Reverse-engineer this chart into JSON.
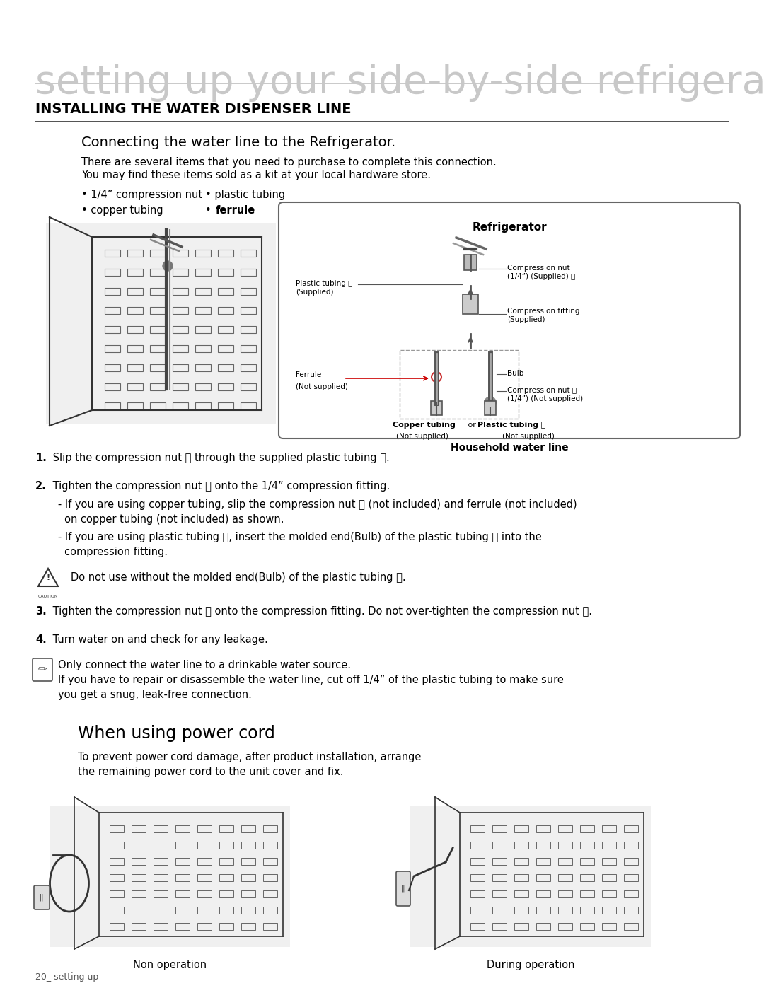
{
  "page_title": "setting up your side-by-side refrigerator",
  "section_title": "INSTALLING THE WATER DISPENSER LINE",
  "subsection_title": "Connecting the water line to the Refrigerator.",
  "intro_line1": "There are several items that you need to purchase to complete this connection.",
  "intro_line2": "You may find these items sold as a kit at your local hardware store.",
  "bullet_col1_1": "• 1/4” compression nut",
  "bullet_col1_2": "• copper tubing",
  "bullet_col2_1": "• plastic tubing",
  "bullet_col2_2_prefix": "• ",
  "bullet_col2_2_bold": "ferrule",
  "diagram_title": "Refrigerator",
  "diagram_label_plastic": "Plastic tubing Ⓐ\n(Supplied)",
  "diagram_label_comp_nut_a": "Compression nut\n(1/4”) (Supplied) Ⓐ",
  "diagram_label_comp_fitting": "Compression fitting\n(Supplied)",
  "diagram_label_ferrule": "Ferrule",
  "diagram_label_ferrule_ns": "(Not supplied)",
  "diagram_label_bulb": "Bulb",
  "diagram_label_comp_nut_b": "Compression nut Ⓑ\n(1/4”) (Not supplied)",
  "diagram_copper_bold": "Copper tubing",
  "diagram_or": " or ",
  "diagram_plastic_bold": "Plastic tubing Ⓑ",
  "diagram_not_sup1": "(Not supplied)",
  "diagram_not_sup2": "(Not supplied)",
  "diagram_footer": "Household water line",
  "step1_bold": "1.",
  "step1_text": " Slip the compression nut Ⓐ through the supplied plastic tubing Ⓐ.",
  "step2_bold": "2.",
  "step2_text": " Tighten the compression nut Ⓐ onto the 1/4” compression fitting.",
  "step2_sub1": "   - If you are using copper tubing, slip the compression nut Ⓑ (not included) and ferrule (not included)",
  "step2_sub1b": "     on copper tubing (not included) as shown.",
  "step2_sub2": "   - If you are using plastic tubing Ⓑ, insert the molded end(Bulb) of the plastic tubing Ⓑ into the",
  "step2_sub2b": "     compression fitting.",
  "caution_text": "Do not use without the molded end(Bulb) of the plastic tubing Ⓑ.",
  "step3_bold": "3.",
  "step3_text": " Tighten the compression nut Ⓑ onto the compression fitting. Do not over-tighten the compression nut Ⓑ.",
  "step4_bold": "4.",
  "step4_text": " Turn water on and check for any leakage.",
  "note_line1": "Only connect the water line to a drinkable water source.",
  "note_line2": "If you have to repair or disassemble the water line, cut off 1/4” of the plastic tubing to make sure",
  "note_line3": "you get a snug, leak-free connection.",
  "power_title": "When using power cord",
  "power_text1": "To prevent power cord damage, after product installation, arrange",
  "power_text2": "the remaining power cord to the unit cover and fix.",
  "label_non_op": "Non operation",
  "label_during_op": "During operation",
  "footer": "20_ setting up",
  "bg_color": "#ffffff"
}
